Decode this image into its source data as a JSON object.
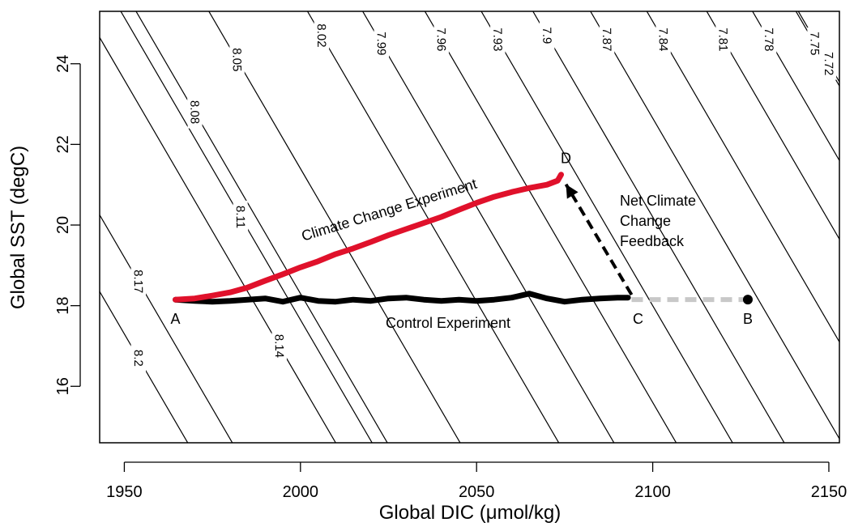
{
  "chart_data": {
    "type": "line",
    "xlabel": "Global DIC (μmol/kg)",
    "ylabel": "Global SST (degC)",
    "xlim": [
      1943,
      2153
    ],
    "ylim": [
      14.6,
      25.3
    ],
    "x_ticks": [
      1950,
      2000,
      2050,
      2100,
      2150
    ],
    "y_ticks": [
      16,
      18,
      20,
      22,
      24
    ],
    "grid": false,
    "contours": {
      "labels": [
        "8.2",
        "8.17",
        "8.14",
        "8.11",
        "8.08",
        "8.05",
        "8.02",
        "7.99",
        "7.96",
        "7.93",
        "7.9",
        "7.87",
        "7.84",
        "7.81",
        "7.78",
        "7.75",
        "7.72"
      ],
      "label_anchors": [
        {
          "label": "8.2",
          "x": 1954,
          "y": 16.7
        },
        {
          "label": "8.17",
          "x": 1954,
          "y": 18.6
        },
        {
          "label": "8.14",
          "x": 1994,
          "y": 17.0
        },
        {
          "label": "8.11",
          "x": 1983,
          "y": 20.2
        },
        {
          "label": "8.08",
          "x": 1970,
          "y": 22.8
        },
        {
          "label": "8.05",
          "x": 1982,
          "y": 24.1
        },
        {
          "label": "8.02",
          "x": 2006,
          "y": 24.7
        },
        {
          "label": "7.99",
          "x": 2023,
          "y": 24.5
        },
        {
          "label": "7.96",
          "x": 2040,
          "y": 24.6
        },
        {
          "label": "7.93",
          "x": 2056,
          "y": 24.6
        },
        {
          "label": "7.9",
          "x": 2070,
          "y": 24.7
        },
        {
          "label": "7.87",
          "x": 2087,
          "y": 24.6
        },
        {
          "label": "7.84",
          "x": 2103,
          "y": 24.6
        },
        {
          "label": "7.81",
          "x": 2120,
          "y": 24.6
        },
        {
          "label": "7.78",
          "x": 2133,
          "y": 24.6
        },
        {
          "label": "7.75",
          "x": 2146,
          "y": 24.5
        },
        {
          "label": "7.72",
          "x": 2150,
          "y": 24.0
        }
      ]
    },
    "series": [
      {
        "name": "Climate Change Experiment",
        "color": "#e0112b",
        "x": [
          1964.5,
          1970,
          1975,
          1980,
          1985,
          1990,
          1995,
          2000,
          2005,
          2010,
          2015,
          2020,
          2025,
          2030,
          2035,
          2040,
          2045,
          2050,
          2055,
          2060,
          2065,
          2070,
          2073,
          2074
        ],
        "y": [
          18.15,
          18.18,
          18.25,
          18.33,
          18.45,
          18.62,
          18.78,
          18.95,
          19.1,
          19.28,
          19.42,
          19.58,
          19.75,
          19.9,
          20.05,
          20.2,
          20.38,
          20.55,
          20.7,
          20.82,
          20.92,
          21.0,
          21.1,
          21.25
        ]
      },
      {
        "name": "Control Experiment",
        "color": "#000000",
        "x": [
          1964.5,
          1970,
          1975,
          1980,
          1985,
          1990,
          1995,
          2000,
          2005,
          2010,
          2015,
          2020,
          2025,
          2030,
          2035,
          2040,
          2045,
          2050,
          2055,
          2060,
          2065,
          2070,
          2075,
          2080,
          2085,
          2090,
          2093
        ],
        "y": [
          18.15,
          18.12,
          18.1,
          18.12,
          18.15,
          18.18,
          18.1,
          18.2,
          18.12,
          18.1,
          18.15,
          18.12,
          18.18,
          18.2,
          18.15,
          18.12,
          18.15,
          18.12,
          18.15,
          18.2,
          18.3,
          18.18,
          18.1,
          18.15,
          18.18,
          18.2,
          18.2
        ]
      }
    ],
    "points": [
      {
        "label": "A",
        "x": 1964.5,
        "y": 18.15
      },
      {
        "label": "B",
        "x": 2127,
        "y": 18.15
      },
      {
        "label": "C",
        "x": 2094,
        "y": 18.15
      },
      {
        "label": "D",
        "x": 2074,
        "y": 21.25
      }
    ],
    "annotations": {
      "climate_label": "Climate Change Experiment",
      "control_label": "Control Experiment",
      "feedback_label_1": "Net Climate",
      "feedback_label_2": "Change",
      "feedback_label_3": "Feedback"
    },
    "colors": {
      "red_series": "#e0112b",
      "black_series": "#000000",
      "dashed_gray": "#c8c8c8"
    }
  }
}
